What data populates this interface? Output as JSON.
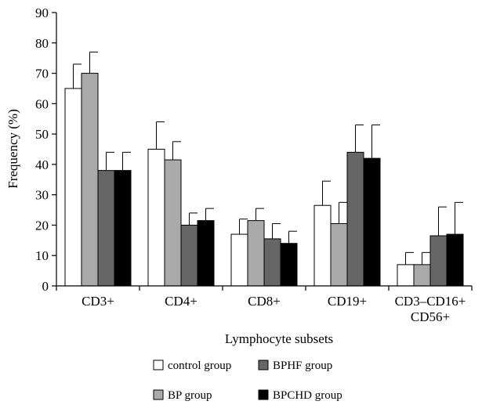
{
  "chart_data": {
    "type": "bar",
    "title": "",
    "xlabel": "Lymphocyte subsets",
    "ylabel": "Frequency (%)",
    "ylim": [
      0,
      90
    ],
    "yticks": [
      "0",
      "10",
      "20",
      "30",
      "40",
      "50",
      "60",
      "70",
      "80",
      "90"
    ],
    "categories": [
      {
        "lines": [
          "CD3+"
        ]
      },
      {
        "lines": [
          "CD4+"
        ]
      },
      {
        "lines": [
          "CD8+"
        ]
      },
      {
        "lines": [
          "CD19+"
        ]
      },
      {
        "lines": [
          "CD3–CD16+",
          "CD56+"
        ]
      }
    ],
    "series": [
      {
        "name": "control group",
        "color": "#ffffff",
        "values": [
          65,
          45,
          17,
          26.5,
          7
        ],
        "errors": [
          8,
          9,
          5,
          8,
          4
        ]
      },
      {
        "name": "BP group",
        "color": "#aaaaaa",
        "values": [
          70,
          41.5,
          21.5,
          20.5,
          7
        ],
        "errors": [
          7,
          6,
          4,
          7,
          4
        ]
      },
      {
        "name": "BPHF group",
        "color": "#666666",
        "values": [
          38,
          20,
          15.5,
          44,
          16.5
        ],
        "errors": [
          6,
          4,
          5,
          9,
          9.5
        ]
      },
      {
        "name": "BPCHD group",
        "color": "#000000",
        "values": [
          38,
          21.5,
          14,
          42,
          17
        ],
        "errors": [
          6,
          4,
          4,
          11,
          10.5
        ]
      }
    ],
    "legend": {
      "placement": "bottom",
      "columns": 2
    }
  }
}
